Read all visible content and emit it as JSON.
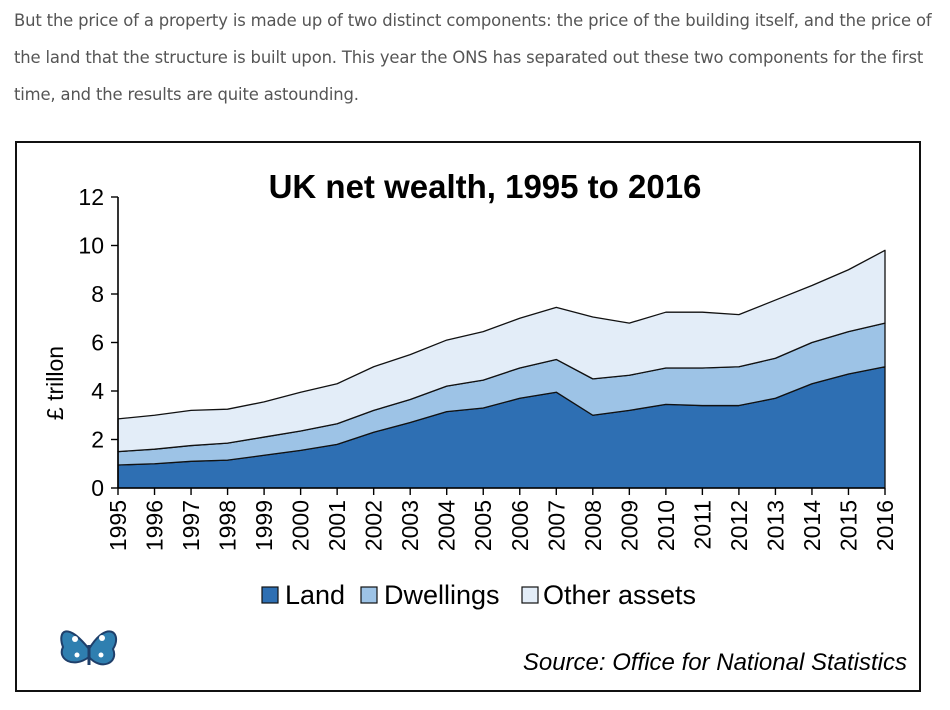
{
  "intro": {
    "line1": "But the price of a property is made up of two distinct components: the price of the building itself, and the price of",
    "line2": "the land that the structure is built upon. This year the ONS has separated out these two components for the first",
    "line3": "time, and the results are quite astounding."
  },
  "logo_icon": "butterfly-logo",
  "chart_data": {
    "type": "area",
    "stacked": true,
    "title": "UK net wealth, 1995 to 2016",
    "ylabel": "£ trillon",
    "xlabel": "",
    "ylim": [
      0,
      12
    ],
    "yticks": [
      0,
      2,
      4,
      6,
      8,
      10,
      12
    ],
    "x": [
      "1995",
      "1996",
      "1997",
      "1998",
      "1999",
      "2000",
      "2001",
      "2002",
      "2003",
      "2004",
      "2005",
      "2006",
      "2007",
      "2008",
      "2009",
      "2010",
      "2011",
      "2012",
      "2013",
      "2014",
      "2015",
      "2016"
    ],
    "series": [
      {
        "name": "Land",
        "color": "#2e6fb3",
        "values": [
          0.95,
          1.0,
          1.1,
          1.15,
          1.35,
          1.55,
          1.8,
          2.3,
          2.7,
          3.15,
          3.3,
          3.7,
          3.95,
          3.0,
          3.2,
          3.45,
          3.4,
          3.4,
          3.7,
          4.3,
          4.7,
          5.0
        ]
      },
      {
        "name": "Dwellings",
        "color": "#9dc3e6",
        "values": [
          0.55,
          0.6,
          0.65,
          0.7,
          0.75,
          0.8,
          0.85,
          0.9,
          0.95,
          1.05,
          1.15,
          1.25,
          1.35,
          1.5,
          1.45,
          1.5,
          1.55,
          1.6,
          1.65,
          1.7,
          1.75,
          1.8
        ]
      },
      {
        "name": "Other assets",
        "color": "#e3edf8",
        "values": [
          1.35,
          1.4,
          1.45,
          1.4,
          1.45,
          1.6,
          1.65,
          1.8,
          1.85,
          1.9,
          2.0,
          2.05,
          2.15,
          2.55,
          2.15,
          2.3,
          2.3,
          2.15,
          2.4,
          2.35,
          2.55,
          3.0
        ]
      }
    ],
    "legend_position": "bottom",
    "grid": false,
    "source": "Source: Office for National Statistics"
  }
}
